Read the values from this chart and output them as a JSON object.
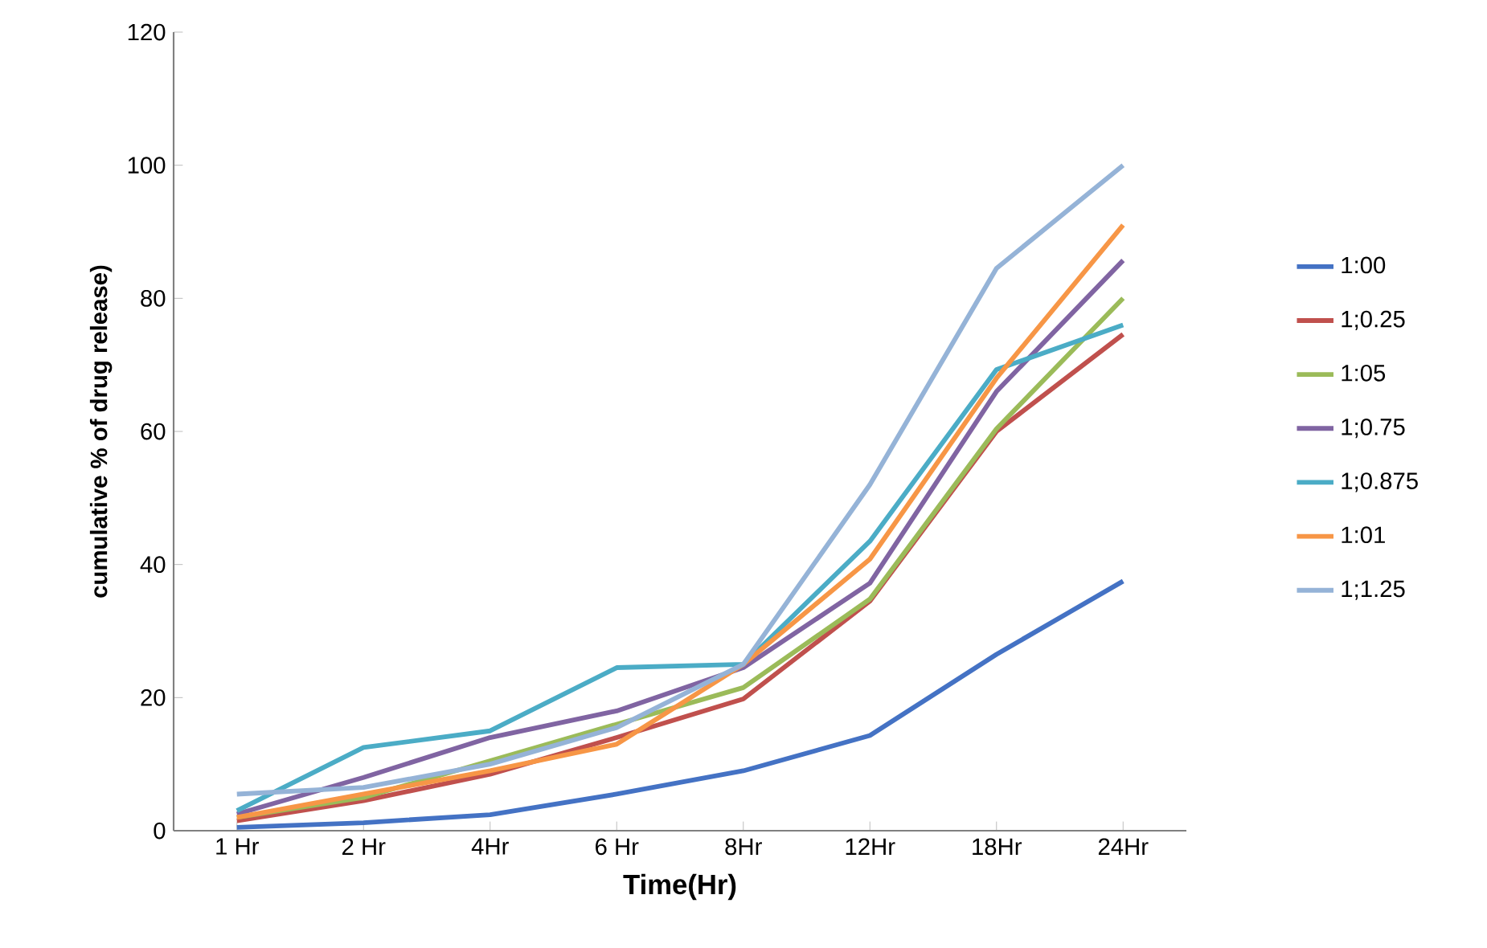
{
  "chart_data": {
    "type": "line",
    "xlabel": "Time(Hr)",
    "ylabel": "cumulative % of drug release)",
    "categories": [
      "1 Hr",
      "2 Hr",
      "4Hr",
      "6 Hr",
      "8Hr",
      "12Hr",
      "18Hr",
      "24Hr"
    ],
    "ylim": [
      0,
      120
    ],
    "yticks": [
      0,
      20,
      40,
      60,
      80,
      100,
      120
    ],
    "grid": false,
    "legend": "right",
    "marker": "none",
    "line_style": "solid",
    "series": [
      {
        "name": "1:00",
        "color": "#4472c4",
        "values": [
          0.5,
          1.2,
          2.4,
          5.5,
          9,
          14.3,
          26.5,
          37.5
        ]
      },
      {
        "name": "1;0.25",
        "color": "#c0504d",
        "values": [
          1.5,
          4.5,
          8.5,
          14,
          19.8,
          34.5,
          60,
          74.6
        ]
      },
      {
        "name": "1:05",
        "color": "#9bbb59",
        "values": [
          2,
          5,
          10.5,
          16,
          21.5,
          34.8,
          60.4,
          80
        ]
      },
      {
        "name": "1;0.75",
        "color": "#8064a2",
        "values": [
          2.5,
          8,
          14,
          18,
          24.5,
          37.2,
          66,
          85.7
        ]
      },
      {
        "name": "1;0.875",
        "color": "#4bacc6",
        "values": [
          3,
          12.5,
          15,
          24.5,
          25,
          43.5,
          69.3,
          76
        ]
      },
      {
        "name": "1:01",
        "color": "#f79646",
        "values": [
          2,
          5.5,
          9,
          13,
          25,
          40.8,
          68,
          91
        ]
      },
      {
        "name": "1;1.25",
        "color": "#95b3d7",
        "values": [
          5.5,
          6.5,
          10,
          15.5,
          25,
          52,
          84.5,
          100
        ]
      }
    ]
  }
}
